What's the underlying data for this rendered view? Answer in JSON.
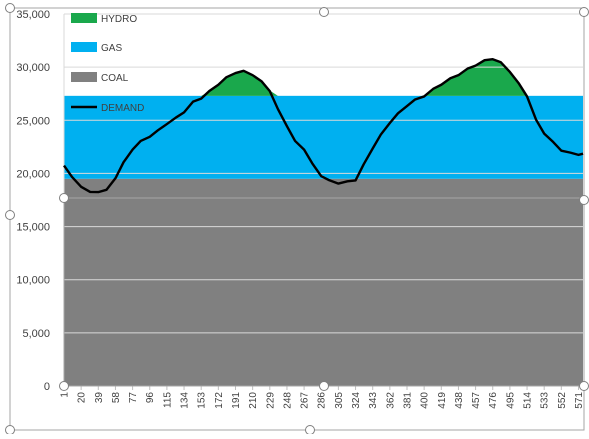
{
  "chart_data": {
    "type": "area",
    "title": "",
    "xlabel": "",
    "ylabel": "",
    "ylim": [
      0,
      35000
    ],
    "xlim": [
      1,
      576
    ],
    "y_ticks": [
      "0",
      "5,000",
      "10,000",
      "15,000",
      "20,000",
      "25,000",
      "30,000",
      "35,000"
    ],
    "y_tick_values": [
      0,
      5000,
      10000,
      15000,
      20000,
      25000,
      30000,
      35000
    ],
    "x_ticks": [
      "1",
      "20",
      "39",
      "58",
      "77",
      "96",
      "115",
      "134",
      "153",
      "172",
      "191",
      "210",
      "229",
      "248",
      "267",
      "286",
      "305",
      "324",
      "343",
      "362",
      "381",
      "400",
      "419",
      "438",
      "457",
      "476",
      "495",
      "514",
      "533",
      "552",
      "571"
    ],
    "grid": true,
    "legend_position": "top-left",
    "series": [
      {
        "name": "HYDRO",
        "kind": "area",
        "color": "#1aa84c",
        "description_fill": "demand above gas capacity"
      },
      {
        "name": "GAS",
        "kind": "band",
        "color": "#00b0f0",
        "from": 19500,
        "to": 27300
      },
      {
        "name": "COAL",
        "kind": "band",
        "color": "#808080",
        "from": 0,
        "to": 19500
      },
      {
        "name": "DEMAND",
        "kind": "line",
        "color": "#000000",
        "x": [
          1,
          10,
          20,
          30,
          39,
          48,
          58,
          67,
          77,
          86,
          96,
          105,
          115,
          125,
          134,
          144,
          153,
          162,
          172,
          181,
          191,
          200,
          210,
          220,
          229,
          238,
          248,
          257,
          267,
          276,
          286,
          295,
          305,
          315,
          324,
          333,
          343,
          352,
          362,
          371,
          381,
          390,
          400,
          410,
          419,
          429,
          438,
          448,
          457,
          467,
          476,
          485,
          495,
          505,
          514,
          524,
          533,
          543,
          552,
          562,
          571,
          576
        ],
        "values": [
          20800,
          19600,
          18800,
          18200,
          18300,
          18400,
          19600,
          21000,
          22300,
          23000,
          23500,
          24000,
          24700,
          25200,
          25800,
          26700,
          27100,
          27700,
          28400,
          29000,
          29500,
          29600,
          29300,
          28600,
          27800,
          26000,
          24500,
          23000,
          22300,
          20900,
          19800,
          19300,
          19100,
          19200,
          19400,
          20800,
          22400,
          23600,
          24800,
          25600,
          26400,
          26900,
          27300,
          27900,
          28400,
          28900,
          29300,
          29800,
          30200,
          30600,
          30800,
          30400,
          29600,
          28400,
          27300,
          25000,
          23800,
          22900,
          22200,
          21900,
          21800,
          21800
        ]
      }
    ]
  }
}
